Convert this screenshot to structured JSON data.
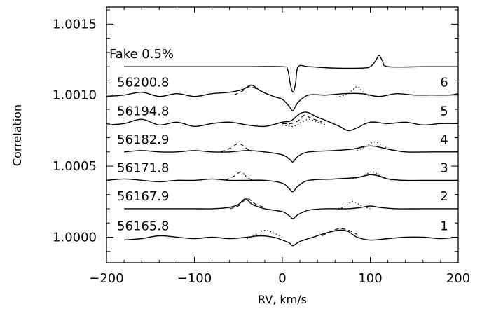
{
  "chart_data": {
    "type": "line",
    "xlabel": "RV, km/s",
    "ylabel": "Correlation",
    "xlim": [
      -200,
      200
    ],
    "ylim": [
      0.99982,
      1.00162
    ],
    "x_ticks": [
      -200,
      -100,
      0,
      100,
      200
    ],
    "x_tick_labels": [
      "−200",
      "−100",
      "0",
      "100",
      "200"
    ],
    "y_ticks": [
      1.0,
      1.0005,
      1.001,
      1.0015
    ],
    "y_tick_labels": [
      "1.0000",
      "1.0005",
      "1.0010",
      "1.0015"
    ],
    "grid": false,
    "series": [
      {
        "name": "Fake 0.5%",
        "right_label": "",
        "baseline": 1.0012,
        "solid": [
          [
            -180,
            1.0012
          ],
          [
            -120,
            1.0012
          ],
          [
            -40,
            1.0012
          ],
          [
            0,
            1.0012
          ],
          [
            6,
            1.00118
          ],
          [
            9,
            1.00108
          ],
          [
            12,
            1.00102
          ],
          [
            15,
            1.00108
          ],
          [
            18,
            1.0012
          ],
          [
            30,
            1.0012
          ],
          [
            60,
            1.00119
          ],
          [
            90,
            1.00119
          ],
          [
            100,
            1.0012
          ],
          [
            106,
            1.00124
          ],
          [
            110,
            1.00128
          ],
          [
            114,
            1.00124
          ],
          [
            120,
            1.0012
          ],
          [
            160,
            1.0012
          ],
          [
            200,
            1.0012
          ]
        ]
      },
      {
        "name": "56200.8",
        "right_label": "6",
        "baseline": 1.001,
        "solid": [
          [
            -200,
            1.00099
          ],
          [
            -180,
            1.001
          ],
          [
            -160,
            1.00102
          ],
          [
            -140,
            1.00099
          ],
          [
            -120,
            1.00101
          ],
          [
            -100,
            1.00099
          ],
          [
            -80,
            1.00101
          ],
          [
            -60,
            1.00102
          ],
          [
            -45,
            1.00104
          ],
          [
            -35,
            1.00107
          ],
          [
            -25,
            1.00103
          ],
          [
            -10,
            1.00099
          ],
          [
            0,
            1.00097
          ],
          [
            8,
            1.00092
          ],
          [
            12,
            1.00089
          ],
          [
            18,
            1.00095
          ],
          [
            30,
            1.001
          ],
          [
            50,
            1.001
          ],
          [
            70,
            1.00101
          ],
          [
            90,
            1.00101
          ],
          [
            110,
            1.00099
          ],
          [
            130,
            1.00101
          ],
          [
            150,
            1.001
          ],
          [
            170,
            1.001
          ],
          [
            190,
            1.001
          ],
          [
            200,
            1.00101
          ]
        ],
        "dashed": [
          [
            -55,
            1.001
          ],
          [
            -45,
            1.00103
          ],
          [
            -37,
            1.00106
          ],
          [
            -28,
            1.00104
          ],
          [
            -15,
            1.001
          ]
        ],
        "dotted": [
          [
            65,
            1.00099
          ],
          [
            75,
            1.00101
          ],
          [
            85,
            1.00106
          ],
          [
            92,
            1.00102
          ],
          [
            100,
            1.00099
          ]
        ]
      },
      {
        "name": "56194.8",
        "right_label": "5",
        "baseline": 1.0008,
        "solid": [
          [
            -200,
            1.00079
          ],
          [
            -180,
            1.0008
          ],
          [
            -160,
            1.00083
          ],
          [
            -140,
            1.00079
          ],
          [
            -120,
            1.00081
          ],
          [
            -100,
            1.00078
          ],
          [
            -80,
            1.0008
          ],
          [
            -60,
            1.00081
          ],
          [
            -40,
            1.00079
          ],
          [
            -20,
            1.00078
          ],
          [
            0,
            1.00081
          ],
          [
            10,
            1.00082
          ],
          [
            20,
            1.00087
          ],
          [
            28,
            1.00088
          ],
          [
            38,
            1.00085
          ],
          [
            50,
            1.00082
          ],
          [
            65,
            1.00078
          ],
          [
            75,
            1.00075
          ],
          [
            85,
            1.00077
          ],
          [
            100,
            1.00081
          ],
          [
            120,
            1.0008
          ],
          [
            140,
            1.00081
          ],
          [
            160,
            1.00079
          ],
          [
            180,
            1.0008
          ],
          [
            200,
            1.0008
          ]
        ],
        "dashed": [
          [
            0,
            1.0008
          ],
          [
            10,
            1.0008
          ],
          [
            18,
            1.00082
          ],
          [
            25,
            1.00086
          ],
          [
            32,
            1.00084
          ],
          [
            45,
            1.00081
          ]
        ],
        "dotted": [
          [
            0,
            1.00079
          ],
          [
            12,
            1.00078
          ],
          [
            22,
            1.00081
          ],
          [
            30,
            1.00083
          ],
          [
            40,
            1.00081
          ],
          [
            50,
            1.00079
          ]
        ]
      },
      {
        "name": "56182.9",
        "right_label": "4",
        "baseline": 1.0006,
        "solid": [
          [
            -180,
            1.0006
          ],
          [
            -160,
            1.00061
          ],
          [
            -140,
            1.0006
          ],
          [
            -120,
            1.0006
          ],
          [
            -100,
            1.00061
          ],
          [
            -80,
            1.0006
          ],
          [
            -60,
            1.0006
          ],
          [
            -40,
            1.00061
          ],
          [
            -20,
            1.0006
          ],
          [
            0,
            1.00058
          ],
          [
            8,
            1.00055
          ],
          [
            12,
            1.00053
          ],
          [
            18,
            1.00057
          ],
          [
            30,
            1.0006
          ],
          [
            60,
            1.00061
          ],
          [
            80,
            1.00062
          ],
          [
            95,
            1.00064
          ],
          [
            105,
            1.00064
          ],
          [
            120,
            1.00062
          ],
          [
            140,
            1.0006
          ],
          [
            170,
            1.0006
          ],
          [
            200,
            1.0006
          ]
        ],
        "dashed": [
          [
            -70,
            1.0006
          ],
          [
            -58,
            1.00063
          ],
          [
            -50,
            1.00066
          ],
          [
            -42,
            1.00063
          ],
          [
            -35,
            1.0006
          ]
        ],
        "dotted": [
          [
            85,
            1.00061
          ],
          [
            95,
            1.00064
          ],
          [
            105,
            1.00067
          ],
          [
            115,
            1.00064
          ],
          [
            125,
            1.00061
          ]
        ]
      },
      {
        "name": "56171.8",
        "right_label": "3",
        "baseline": 1.0004,
        "solid": [
          [
            -200,
            1.0004
          ],
          [
            -180,
            1.00041
          ],
          [
            -160,
            1.0004
          ],
          [
            -140,
            1.00039
          ],
          [
            -120,
            1.0004
          ],
          [
            -100,
            1.0004
          ],
          [
            -80,
            1.00041
          ],
          [
            -60,
            1.0004
          ],
          [
            -40,
            1.0004
          ],
          [
            -20,
            1.0004
          ],
          [
            0,
            1.00038
          ],
          [
            8,
            1.00034
          ],
          [
            12,
            1.00032
          ],
          [
            18,
            1.00036
          ],
          [
            30,
            1.0004
          ],
          [
            60,
            1.00041
          ],
          [
            85,
            1.00042
          ],
          [
            100,
            1.00044
          ],
          [
            110,
            1.00043
          ],
          [
            120,
            1.00041
          ],
          [
            140,
            1.0004
          ],
          [
            170,
            1.0004
          ],
          [
            200,
            1.0004
          ]
        ],
        "dashed": [
          [
            -65,
            1.0004
          ],
          [
            -55,
            1.00043
          ],
          [
            -47,
            1.00046
          ],
          [
            -40,
            1.00042
          ],
          [
            -33,
            1.0004
          ]
        ],
        "dotted": [
          [
            80,
            1.00041
          ],
          [
            92,
            1.00043
          ],
          [
            102,
            1.00046
          ],
          [
            112,
            1.00043
          ],
          [
            125,
            1.0004
          ]
        ]
      },
      {
        "name": "56167.9",
        "right_label": "2",
        "baseline": 1.0002,
        "solid": [
          [
            -180,
            1.0002
          ],
          [
            -160,
            1.0002
          ],
          [
            -140,
            1.0002
          ],
          [
            -120,
            1.0002
          ],
          [
            -100,
            1.0002
          ],
          [
            -80,
            1.0002
          ],
          [
            -60,
            1.00021
          ],
          [
            -50,
            1.00023
          ],
          [
            -42,
            1.00027
          ],
          [
            -34,
            1.00023
          ],
          [
            -20,
            1.0002
          ],
          [
            0,
            1.00018
          ],
          [
            8,
            1.00015
          ],
          [
            12,
            1.00013
          ],
          [
            18,
            1.00016
          ],
          [
            30,
            1.00019
          ],
          [
            50,
            1.0002
          ],
          [
            75,
            1.0002
          ],
          [
            90,
            1.00021
          ],
          [
            100,
            1.00022
          ],
          [
            110,
            1.00021
          ],
          [
            130,
            1.0002
          ],
          [
            160,
            1.0002
          ],
          [
            200,
            1.0002
          ]
        ],
        "dashed": [
          [
            -60,
            1.0002
          ],
          [
            -50,
            1.00022
          ],
          [
            -40,
            1.00027
          ],
          [
            -30,
            1.00023
          ],
          [
            -20,
            1.00021
          ]
        ],
        "dotted": [
          [
            60,
            1.0002
          ],
          [
            70,
            1.00021
          ],
          [
            80,
            1.00025
          ],
          [
            90,
            1.00022
          ],
          [
            100,
            1.0002
          ]
        ]
      },
      {
        "name": "56165.8",
        "right_label": "1",
        "baseline": 0.99999,
        "solid": [
          [
            -180,
            0.99998
          ],
          [
            -160,
            0.99999
          ],
          [
            -140,
            1.00001
          ],
          [
            -120,
            1.0
          ],
          [
            -100,
            0.99999
          ],
          [
            -80,
            1.0
          ],
          [
            -60,
            0.99999
          ],
          [
            -40,
            1.0
          ],
          [
            -25,
            1.00001
          ],
          [
            -10,
            1.0
          ],
          [
            0,
            0.99998
          ],
          [
            8,
            0.99996
          ],
          [
            12,
            0.99994
          ],
          [
            20,
            0.99997
          ],
          [
            35,
            1.0
          ],
          [
            50,
            1.00003
          ],
          [
            65,
            1.00005
          ],
          [
            75,
            1.00004
          ],
          [
            85,
            1.0
          ],
          [
            100,
            0.99998
          ],
          [
            120,
            0.99999
          ],
          [
            140,
            1.0
          ],
          [
            160,
            1.0
          ],
          [
            180,
            0.99999
          ],
          [
            200,
            1.0
          ]
        ],
        "dashed": [
          [
            45,
            1.00001
          ],
          [
            55,
            1.00004
          ],
          [
            65,
            1.00006
          ],
          [
            75,
            1.00005
          ],
          [
            85,
            1.00002
          ]
        ],
        "dotted": [
          [
            -40,
            0.99999
          ],
          [
            -30,
            1.00002
          ],
          [
            -20,
            1.00005
          ],
          [
            -10,
            1.00003
          ],
          [
            0,
            1.0
          ]
        ]
      }
    ]
  }
}
